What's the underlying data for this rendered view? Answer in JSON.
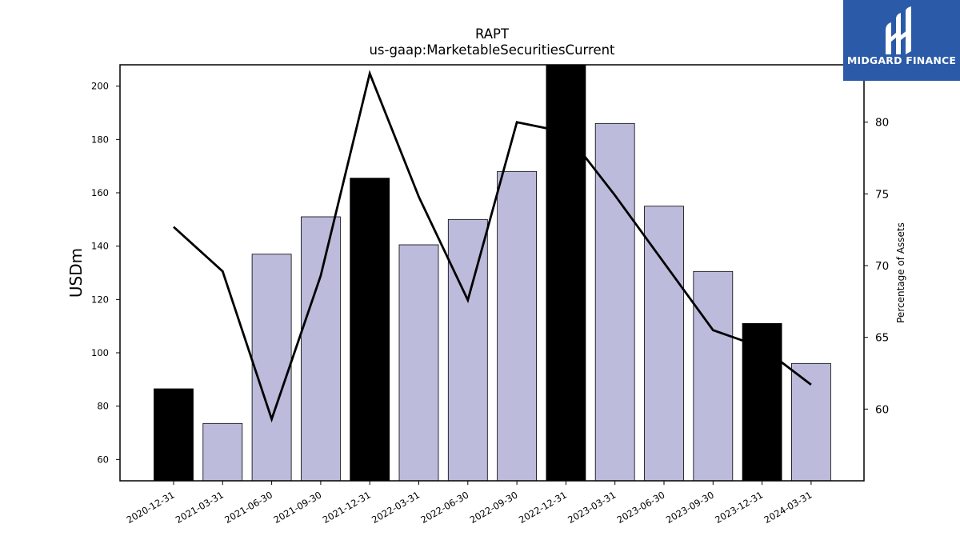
{
  "chart_data": {
    "type": "bar",
    "title": "RAPT",
    "subtitle": "us-gaap:MarketableSecuritiesCurrent",
    "ylabel": "USDm",
    "y2label": "Percentage of Assets",
    "ylim": [
      52,
      208
    ],
    "y2lim": [
      55,
      84
    ],
    "yticks": [
      60,
      80,
      100,
      120,
      140,
      160,
      180,
      200
    ],
    "y2ticks": [
      60,
      65,
      70,
      75,
      80
    ],
    "categories": [
      "2020-12-31",
      "2021-03-31",
      "2021-06-30",
      "2021-09-30",
      "2021-12-31",
      "2022-03-31",
      "2022-06-30",
      "2022-09-30",
      "2022-12-31",
      "2023-03-31",
      "2023-06-30",
      "2023-09-30",
      "2023-12-31",
      "2024-03-31"
    ],
    "series": [
      {
        "type": "bar",
        "values": [
          86.5,
          73.5,
          137,
          151,
          165.5,
          140.5,
          150,
          168,
          208,
          186,
          155,
          130.5,
          111,
          96
        ],
        "highlight": [
          true,
          false,
          false,
          false,
          true,
          false,
          false,
          false,
          true,
          false,
          false,
          false,
          true,
          false
        ]
      },
      {
        "type": "line",
        "axis": "right",
        "values": [
          72.7,
          69.6,
          59.3,
          69.3,
          83.4,
          74.8,
          67.6,
          80.0,
          79.3,
          74.9,
          70.2,
          65.5,
          64.3,
          61.7
        ]
      }
    ],
    "colors": {
      "bar": "#bdbbdb",
      "bar_highlight": "#000000",
      "line": "#000000"
    },
    "grid": false
  },
  "logo": {
    "text": "MIDGARD FINANCE",
    "color": "#2a5aa8"
  }
}
